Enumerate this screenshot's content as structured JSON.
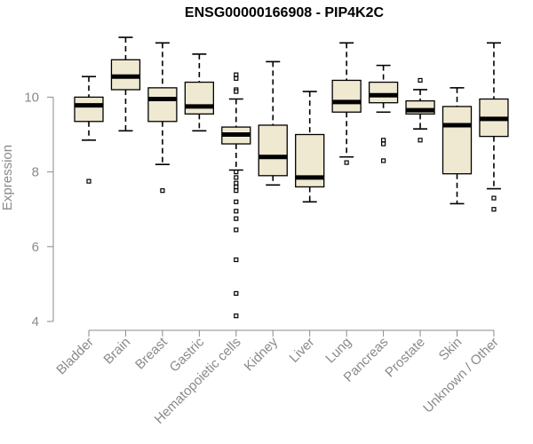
{
  "chart_data": {
    "type": "boxplot",
    "title": "ENSG00000166908 - PIP4K2C",
    "xlabel": "",
    "ylabel": "Expression",
    "ylim": [
      4,
      11.6
    ],
    "yticks": [
      4,
      6,
      8,
      10
    ],
    "box_fill": "#efe9d2",
    "categories": [
      "Bladder",
      "Brain",
      "Breast",
      "Gastric",
      "Hematopoietic cells",
      "Kidney",
      "Liver",
      "Lung",
      "Pancreas",
      "Prostate",
      "Skin",
      "Unknown / Other"
    ],
    "boxes": [
      {
        "name": "Bladder",
        "min": 8.85,
        "q1": 9.35,
        "median": 9.78,
        "q3": 10.0,
        "max": 10.55,
        "outliers": [
          7.75
        ]
      },
      {
        "name": "Brain",
        "min": 9.1,
        "q1": 10.2,
        "median": 10.55,
        "q3": 11.0,
        "max": 11.6,
        "outliers": []
      },
      {
        "name": "Breast",
        "min": 8.2,
        "q1": 9.35,
        "median": 9.95,
        "q3": 10.25,
        "max": 11.45,
        "outliers": [
          7.5
        ]
      },
      {
        "name": "Gastric",
        "min": 9.1,
        "q1": 9.55,
        "median": 9.75,
        "q3": 10.4,
        "max": 11.15,
        "outliers": []
      },
      {
        "name": "Hematopoietic cells",
        "min": 8.05,
        "q1": 8.75,
        "median": 9.0,
        "q3": 9.2,
        "max": 9.95,
        "outliers": [
          10.6,
          10.5,
          10.2,
          10.15,
          8.0,
          7.85,
          7.7,
          7.6,
          7.5,
          7.2,
          6.95,
          6.75,
          6.45,
          5.65,
          4.75,
          4.15
        ]
      },
      {
        "name": "Kidney",
        "min": 7.65,
        "q1": 7.9,
        "median": 8.4,
        "q3": 9.25,
        "max": 10.95,
        "outliers": []
      },
      {
        "name": "Liver",
        "min": 7.2,
        "q1": 7.6,
        "median": 7.85,
        "q3": 9.0,
        "max": 10.15,
        "outliers": []
      },
      {
        "name": "Lung",
        "min": 8.4,
        "q1": 9.6,
        "median": 9.87,
        "q3": 10.45,
        "max": 11.45,
        "outliers": [
          8.25
        ]
      },
      {
        "name": "Pancreas",
        "min": 9.6,
        "q1": 9.85,
        "median": 10.05,
        "q3": 10.4,
        "max": 10.85,
        "outliers": [
          8.85,
          8.75,
          8.3
        ]
      },
      {
        "name": "Prostate",
        "min": 9.15,
        "q1": 9.55,
        "median": 9.65,
        "q3": 9.9,
        "max": 10.2,
        "outliers": [
          10.45,
          8.85
        ]
      },
      {
        "name": "Skin",
        "min": 7.15,
        "q1": 7.95,
        "median": 9.25,
        "q3": 9.75,
        "max": 10.25,
        "outliers": []
      },
      {
        "name": "Unknown / Other",
        "min": 7.55,
        "q1": 8.95,
        "median": 9.42,
        "q3": 9.95,
        "max": 11.45,
        "outliers": [
          7.3,
          7.0
        ]
      }
    ]
  }
}
